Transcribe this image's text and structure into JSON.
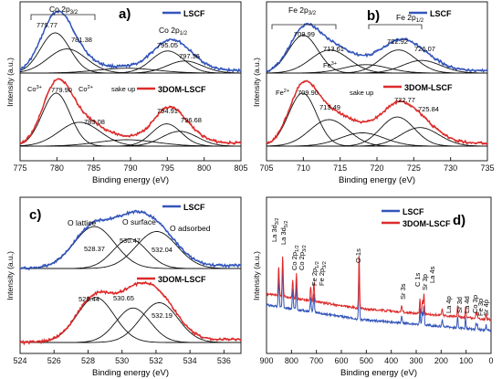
{
  "colors": {
    "blue": "#3355bb",
    "red": "#dd2a2a",
    "black": "#111111",
    "axis": "#222222"
  },
  "chart_data": [
    {
      "panel": "a)",
      "type": "line",
      "xlabel": "Binding energy (eV)",
      "ylabel": "Intensity (a.u.)",
      "xlim": [
        775,
        805
      ],
      "x_ticks": [
        "775",
        "780",
        "785",
        "790",
        "795",
        "800",
        "805"
      ],
      "x_direction": "increasing",
      "legend": [
        "LSCF",
        "3DOM-LSCF"
      ],
      "series": [
        {
          "name": "LSCF",
          "peaks": [
            {
              "center": 779.77,
              "height": 1.0,
              "width": 2.0,
              "label": "779.77"
            },
            {
              "center": 781.38,
              "height": 0.6,
              "width": 2.6,
              "label": "781.38"
            },
            {
              "center": 789.5,
              "height": 0.12,
              "width": 4.0,
              "label": ""
            },
            {
              "center": 795.05,
              "height": 0.55,
              "width": 2.2,
              "label": "795.05"
            },
            {
              "center": 797.36,
              "height": 0.3,
              "width": 2.4,
              "label": "797.36"
            }
          ]
        },
        {
          "name": "3DOM-LSCF",
          "peaks": [
            {
              "center": 779.9,
              "height": 1.0,
              "width": 1.9,
              "label": "779.90"
            },
            {
              "center": 783.08,
              "height": 0.45,
              "width": 2.8,
              "label": "783.08"
            },
            {
              "center": 789.5,
              "height": 0.12,
              "width": 4.0,
              "label": ""
            },
            {
              "center": 794.91,
              "height": 0.42,
              "width": 2.0,
              "label": "794.91"
            },
            {
              "center": 796.68,
              "height": 0.28,
              "width": 2.4,
              "label": "796.68"
            }
          ]
        }
      ],
      "annotations": [
        "Co 2p3/2",
        "Co 2p1/2",
        "Co3+",
        "Co2+",
        "sake up"
      ]
    },
    {
      "panel": "b)",
      "type": "line",
      "xlabel": "Binding energy (eV)",
      "ylabel": "Intensity (a.u.)",
      "xlim": [
        705,
        735
      ],
      "x_ticks": [
        "705",
        "710",
        "715",
        "720",
        "725",
        "730",
        "735"
      ],
      "x_direction": "increasing",
      "legend": [
        "LSCF",
        "3DOM-LSCF"
      ],
      "series": [
        {
          "name": "LSCF",
          "peaks": [
            {
              "center": 709.99,
              "height": 0.9,
              "width": 2.0,
              "label": "709.99"
            },
            {
              "center": 713.61,
              "height": 0.55,
              "width": 2.6,
              "label": "713.61"
            },
            {
              "center": 718.5,
              "height": 0.2,
              "width": 3.0,
              "label": ""
            },
            {
              "center": 722.92,
              "height": 0.55,
              "width": 2.4,
              "label": "722.92"
            },
            {
              "center": 726.07,
              "height": 0.3,
              "width": 2.6,
              "label": "726.07"
            }
          ]
        },
        {
          "name": "3DOM-LSCF",
          "peaks": [
            {
              "center": 709.9,
              "height": 1.0,
              "width": 1.9,
              "label": "709.90"
            },
            {
              "center": 713.49,
              "height": 0.5,
              "width": 2.6,
              "label": "713.49"
            },
            {
              "center": 718.0,
              "height": 0.25,
              "width": 3.0,
              "label": ""
            },
            {
              "center": 722.77,
              "height": 0.55,
              "width": 2.3,
              "label": "722.77"
            },
            {
              "center": 725.84,
              "height": 0.35,
              "width": 2.6,
              "label": "725.84"
            }
          ]
        }
      ],
      "annotations": [
        "Fe 2p3/2",
        "Fe 2p1/2",
        "Fe2+",
        "Fe3+",
        "sake up"
      ]
    },
    {
      "panel": "c)",
      "type": "line",
      "xlabel": "Binding energy (eV)",
      "ylabel": "Intensity (a.u.)",
      "xlim": [
        524,
        537
      ],
      "x_ticks": [
        "524",
        "526",
        "528",
        "530",
        "532",
        "534",
        "536"
      ],
      "x_direction": "increasing",
      "legend": [
        "LSCF",
        "3DOM-LSCF"
      ],
      "series": [
        {
          "name": "LSCF",
          "peaks": [
            {
              "center": 528.37,
              "height": 0.85,
              "width": 1.2,
              "label": "528.37"
            },
            {
              "center": 530.47,
              "height": 0.6,
              "width": 1.0,
              "label": "530.47"
            },
            {
              "center": 532.04,
              "height": 0.75,
              "width": 1.2,
              "label": "532.04"
            }
          ]
        },
        {
          "name": "3DOM-LSCF",
          "peaks": [
            {
              "center": 528.44,
              "height": 0.85,
              "width": 1.1,
              "label": "528.44"
            },
            {
              "center": 530.65,
              "height": 0.65,
              "width": 1.0,
              "label": "530.65"
            },
            {
              "center": 532.19,
              "height": 0.75,
              "width": 1.1,
              "label": "532.19"
            }
          ]
        }
      ],
      "annotations": [
        "O lattice",
        "O surface",
        "O adsorbed"
      ]
    },
    {
      "panel": "d)",
      "type": "line",
      "xlabel": "Binding energy (eV)",
      "ylabel": "Intensity (a.u.)",
      "xlim": [
        900,
        0
      ],
      "x_ticks": [
        "900",
        "800",
        "700",
        "600",
        "500",
        "400",
        "300",
        "200",
        "100",
        "0"
      ],
      "x_direction": "decreasing",
      "legend": [
        "LSCF",
        "3DOM-LSCF"
      ],
      "peak_labels": [
        "La 3d3/2",
        "La 3d5/2",
        "Co 2p1/2",
        "Co 2p3/2",
        "Fe 2p1/2",
        "Fe 2p3/2",
        "O 1s",
        "Sr 3s",
        "C 1s",
        "Sr 3p",
        "La 4s",
        "La 4p",
        "Sr 3d",
        "La 4d",
        "Co 3p",
        "Fe 3p",
        "Sr 4p"
      ]
    }
  ],
  "labels": {
    "a": {
      "panel": "a)",
      "legend_top": "LSCF",
      "legend_bot": "3DOM-LSCF",
      "group1": "Co 2p",
      "group1_sub": "3/2",
      "group2": "Co 2p",
      "group2_sub": "1/2",
      "co3": "Co",
      "co3_sup": "3+",
      "co2": "Co",
      "co2_sup": "2+",
      "sake": "sake up",
      "top": [
        "779.77",
        "781.38",
        "795.05",
        "797.36"
      ],
      "bot": [
        "779.90",
        "783.08",
        "794.91",
        "796.68"
      ],
      "xlabel": "Binding energy (eV)",
      "ylabel": "Intensity (a.u.)"
    },
    "b": {
      "panel": "b)",
      "legend_top": "LSCF",
      "legend_bot": "3DOM-LSCF",
      "group1": "Fe 2p",
      "group1_sub": "3/2",
      "group2": "Fe 2p",
      "group2_sub": "1/2",
      "fe2": "Fe",
      "fe2_sup": "2+",
      "fe3": "Fe",
      "fe3_sup": "3+",
      "sake": "sake up",
      "top": [
        "709.99",
        "713.61",
        "722.92",
        "726.07"
      ],
      "bot": [
        "709.90",
        "713.49",
        "722.77",
        "725.84"
      ],
      "xlabel": "Binding energy (eV)",
      "ylabel": "Intensity (a.u.)"
    },
    "c": {
      "panel": "c)",
      "legend_top": "LSCF",
      "legend_bot": "3DOM-LSCF",
      "o_lattice": "O lattice",
      "o_surface": "O surface",
      "o_adsorbed": "O adsorbed",
      "top": [
        "528.37",
        "530.47",
        "532.04"
      ],
      "bot": [
        "528.44",
        "530.65",
        "532.19"
      ],
      "xlabel": "Binding energy (eV)",
      "ylabel": "Intensity (a.u.)"
    },
    "d": {
      "panel": "d)",
      "legend1": "LSCF",
      "legend2": "3DOM-LSCF",
      "xlabel": "Binding energy (eV)",
      "ylabel": "Intensity (a.u.)",
      "o1s": "O 1s",
      "sr3s": "Sr 3s",
      "c1s": "C 1s",
      "sr3p": "Sr 3p",
      "la4s": "La 4s",
      "la4p": "La 4p",
      "sr3d": "Sr 3d",
      "la4d": "La 4d",
      "co3p": "Co 3p",
      "fe3p": "Fe 3p",
      "sr4p": "Sr 4p",
      "la3d": "La 3d",
      "la3d_sub1": "3/2",
      "la3d_sub2": "5/2",
      "co2p": "Co 2p",
      "co2p_sub1": "1/2",
      "co2p_sub2": "3/2",
      "fe2p": "Fe 2p",
      "fe2p_sub1": "1/2",
      "fe2p_sub2": "3/2"
    }
  }
}
